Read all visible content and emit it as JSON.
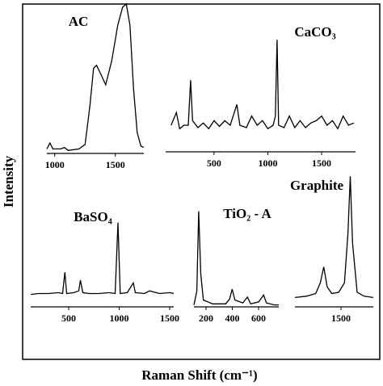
{
  "ylabel": "Intensity",
  "xlabel": "Raman Shift (cm⁻¹)",
  "chart_data": [
    {
      "type": "line",
      "title": "AC",
      "color": "#000000",
      "xlim": [
        935,
        1735
      ],
      "ylim": [
        0,
        100
      ],
      "xticks": [
        1000,
        1500
      ],
      "x": [
        935,
        960,
        985,
        1050,
        1080,
        1110,
        1200,
        1250,
        1290,
        1320,
        1345,
        1380,
        1420,
        1470,
        1520,
        1560,
        1590,
        1620,
        1650,
        1680,
        1710,
        1735
      ],
      "values": [
        3,
        7,
        3,
        3,
        4,
        2,
        3,
        6,
        32,
        57,
        59,
        53,
        46,
        62,
        86,
        98,
        100,
        86,
        43,
        14,
        5,
        4
      ]
    },
    {
      "type": "line",
      "title": "CaCO₃",
      "color": "#000000",
      "xlim": [
        50,
        1815
      ],
      "ylim": [
        0,
        100
      ],
      "xticks": [
        500,
        1000,
        1500
      ],
      "x": [
        100,
        150,
        180,
        220,
        260,
        282,
        300,
        350,
        400,
        450,
        500,
        550,
        600,
        650,
        712,
        740,
        800,
        850,
        900,
        950,
        1000,
        1050,
        1070,
        1086,
        1100,
        1150,
        1200,
        1250,
        1300,
        1350,
        1400,
        1450,
        1500,
        1550,
        1600,
        1650,
        1700,
        1750,
        1800
      ],
      "values": [
        23,
        34,
        20,
        23,
        23,
        62,
        27,
        21,
        25,
        20,
        27,
        22,
        27,
        23,
        41,
        23,
        21,
        31,
        23,
        27,
        20,
        23,
        31,
        97,
        23,
        21,
        31,
        21,
        27,
        21,
        25,
        27,
        31,
        23,
        27,
        20,
        31,
        23,
        25
      ]
    },
    {
      "type": "line",
      "title": "BaSO₄",
      "color": "#000000",
      "xlim": [
        124,
        1540
      ],
      "ylim": [
        0,
        100
      ],
      "xticks": [
        500,
        1000,
        1500
      ],
      "x": [
        124,
        200,
        300,
        400,
        440,
        462,
        480,
        550,
        600,
        616,
        640,
        700,
        800,
        900,
        960,
        988,
        1010,
        1080,
        1140,
        1160,
        1250,
        1300,
        1400,
        1500,
        1540
      ],
      "values": [
        14,
        15,
        15,
        16,
        15,
        39,
        15,
        16,
        18,
        30,
        16,
        15,
        15,
        16,
        15,
        95,
        15,
        16,
        27,
        16,
        15,
        18,
        15,
        16,
        15
      ]
    },
    {
      "type": "line",
      "title": "TiO₂ - A",
      "color": "#000000",
      "xlim": [
        108,
        754
      ],
      "ylim": [
        0,
        100
      ],
      "xticks": [
        200,
        400,
        600
      ],
      "x": [
        108,
        130,
        144,
        160,
        180,
        250,
        350,
        380,
        399,
        420,
        480,
        515,
        540,
        600,
        639,
        660,
        720,
        754
      ],
      "values": [
        2,
        16,
        97,
        33,
        7,
        3,
        3,
        8,
        18,
        7,
        4,
        10,
        3,
        5,
        12,
        4,
        2,
        2
      ]
    },
    {
      "type": "line",
      "title": "Graphite",
      "color": "#000000",
      "xlim": [
        1100,
        1780
      ],
      "ylim": [
        0,
        100
      ],
      "xticks": [
        1500
      ],
      "x": [
        1100,
        1200,
        1280,
        1320,
        1350,
        1380,
        1420,
        1480,
        1530,
        1560,
        1580,
        1600,
        1640,
        1700,
        1780
      ],
      "values": [
        7,
        8,
        10,
        18,
        30,
        15,
        10,
        11,
        18,
        55,
        98,
        48,
        11,
        8,
        7
      ]
    }
  ]
}
